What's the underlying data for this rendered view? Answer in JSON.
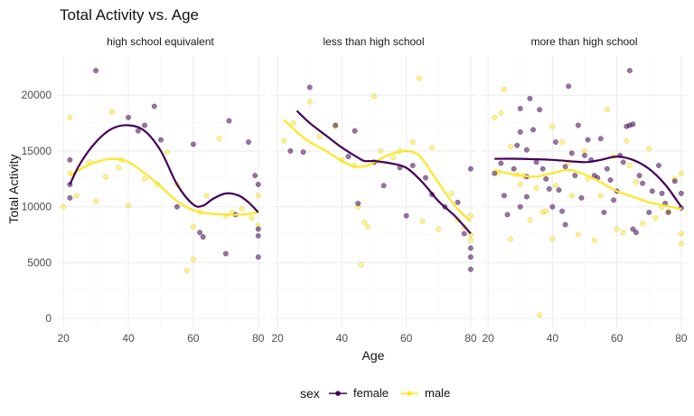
{
  "chart_data": {
    "type": "scatter",
    "title": "Total Activity vs. Age",
    "xlabel": "Age",
    "ylabel": "Total Activity",
    "xlim": [
      18,
      82
    ],
    "ylim": [
      -800,
      23500
    ],
    "x_ticks": [
      20,
      40,
      60,
      80
    ],
    "y_ticks": [
      0,
      5000,
      10000,
      15000,
      20000
    ],
    "y_tick_labels": [
      "0",
      "5000",
      "10000",
      "15000",
      "20000"
    ],
    "grid": true,
    "legend": {
      "title": "sex",
      "position": "bottom"
    },
    "colors": {
      "female": "#440154",
      "male": "#fde725"
    },
    "panels": [
      {
        "label": "high school equivalent",
        "points": {
          "female": [
            [
              22,
              12000
            ],
            [
              22,
              14200
            ],
            [
              22,
              10800
            ],
            [
              30,
              22200
            ],
            [
              40,
              18000
            ],
            [
              43,
              16800
            ],
            [
              45,
              17300
            ],
            [
              48,
              19000
            ],
            [
              50,
              16000
            ],
            [
              55,
              10000
            ],
            [
              60,
              15600
            ],
            [
              62,
              7700
            ],
            [
              63,
              7300
            ],
            [
              70,
              5800
            ],
            [
              71,
              17700
            ],
            [
              77,
              15800
            ],
            [
              80,
              12000
            ],
            [
              80,
              8000
            ],
            [
              80,
              7400
            ],
            [
              80,
              5500
            ],
            [
              79,
              12800
            ],
            [
              73,
              9300
            ]
          ],
          "male": [
            [
              20,
              10000
            ],
            [
              22,
              18000
            ],
            [
              22,
              13000
            ],
            [
              24,
              11000
            ],
            [
              28,
              14000
            ],
            [
              30,
              10500
            ],
            [
              33,
              12700
            ],
            [
              35,
              18500
            ],
            [
              37,
              13500
            ],
            [
              38,
              14200
            ],
            [
              40,
              10100
            ],
            [
              45,
              12500
            ],
            [
              49,
              12000
            ],
            [
              52,
              14900
            ],
            [
              55,
              12000
            ],
            [
              58,
              4300
            ],
            [
              60,
              5300
            ],
            [
              60,
              8200
            ],
            [
              62,
              9500
            ],
            [
              64,
              11000
            ],
            [
              68,
              16100
            ],
            [
              70,
              9200
            ],
            [
              72,
              9500
            ],
            [
              75,
              9800
            ],
            [
              78,
              9000
            ],
            [
              80,
              8300
            ],
            [
              80,
              11000
            ]
          ]
        },
        "smooth": {
          "female": [
            [
              22,
              12000
            ],
            [
              25,
              13800
            ],
            [
              30,
              15800
            ],
            [
              35,
              17000
            ],
            [
              40,
              17300
            ],
            [
              45,
              16800
            ],
            [
              50,
              15000
            ],
            [
              55,
              12000
            ],
            [
              60,
              10200
            ],
            [
              63,
              10100
            ],
            [
              66,
              10700
            ],
            [
              70,
              11200
            ],
            [
              74,
              11000
            ],
            [
              77,
              10400
            ],
            [
              80,
              9500
            ]
          ],
          "male": [
            [
              22,
              12800
            ],
            [
              26,
              13500
            ],
            [
              30,
              14000
            ],
            [
              35,
              14300
            ],
            [
              40,
              14000
            ],
            [
              45,
              13000
            ],
            [
              50,
              11800
            ],
            [
              55,
              10500
            ],
            [
              60,
              9700
            ],
            [
              65,
              9400
            ],
            [
              70,
              9300
            ],
            [
              75,
              9300
            ],
            [
              80,
              9500
            ]
          ]
        }
      },
      {
        "label": "less than high school",
        "points": {
          "female": [
            [
              24,
              15000
            ],
            [
              28,
              14900
            ],
            [
              30,
              20700
            ],
            [
              38,
              17300
            ],
            [
              42,
              14500
            ],
            [
              44,
              16800
            ],
            [
              45,
              10300
            ],
            [
              50,
              14000
            ],
            [
              53,
              11900
            ],
            [
              58,
              13500
            ],
            [
              60,
              9200
            ],
            [
              62,
              13700
            ],
            [
              66,
              12600
            ],
            [
              68,
              11100
            ],
            [
              72,
              10000
            ],
            [
              76,
              10400
            ],
            [
              78,
              7600
            ],
            [
              80,
              6300
            ],
            [
              80,
              5500
            ],
            [
              80,
              4400
            ],
            [
              80,
              13400
            ]
          ],
          "male": [
            [
              22,
              15900
            ],
            [
              25,
              17500
            ],
            [
              30,
              19400
            ],
            [
              33,
              16300
            ],
            [
              38,
              17200
            ],
            [
              40,
              14200
            ],
            [
              44,
              13700
            ],
            [
              45,
              10000
            ],
            [
              46,
              4800
            ],
            [
              47,
              8600
            ],
            [
              48,
              8200
            ],
            [
              50,
              19900
            ],
            [
              52,
              15000
            ],
            [
              56,
              14400
            ],
            [
              58,
              15000
            ],
            [
              62,
              15800
            ],
            [
              64,
              21500
            ],
            [
              65,
              8700
            ],
            [
              68,
              15300
            ],
            [
              70,
              8000
            ],
            [
              74,
              11200
            ],
            [
              76,
              8800
            ],
            [
              78,
              8200
            ],
            [
              80,
              9200
            ],
            [
              80,
              7500
            ],
            [
              80,
              7000
            ]
          ]
        },
        "smooth": {
          "female": [
            [
              26,
              18600
            ],
            [
              30,
              17500
            ],
            [
              35,
              16400
            ],
            [
              40,
              15300
            ],
            [
              45,
              14400
            ],
            [
              47,
              14100
            ],
            [
              50,
              14100
            ],
            [
              55,
              13900
            ],
            [
              60,
              13500
            ],
            [
              65,
              12200
            ],
            [
              70,
              10500
            ],
            [
              75,
              9200
            ],
            [
              80,
              7600
            ]
          ],
          "male": [
            [
              22,
              17800
            ],
            [
              26,
              16700
            ],
            [
              30,
              15800
            ],
            [
              35,
              15000
            ],
            [
              40,
              14100
            ],
            [
              44,
              13600
            ],
            [
              48,
              13700
            ],
            [
              52,
              14300
            ],
            [
              56,
              14800
            ],
            [
              60,
              15000
            ],
            [
              64,
              14600
            ],
            [
              68,
              13000
            ],
            [
              72,
              11300
            ],
            [
              76,
              9800
            ],
            [
              80,
              8700
            ]
          ]
        }
      },
      {
        "label": "more than high school",
        "points": {
          "female": [
            [
              22,
              13000
            ],
            [
              24,
              13900
            ],
            [
              25,
              11000
            ],
            [
              26,
              9300
            ],
            [
              28,
              13400
            ],
            [
              29,
              15500
            ],
            [
              30,
              18800
            ],
            [
              30,
              16700
            ],
            [
              30,
              10000
            ],
            [
              32,
              12700
            ],
            [
              32,
              10900
            ],
            [
              32,
              15100
            ],
            [
              33,
              19700
            ],
            [
              34,
              16900
            ],
            [
              35,
              14000
            ],
            [
              36,
              18700
            ],
            [
              37,
              13400
            ],
            [
              38,
              12500
            ],
            [
              39,
              11600
            ],
            [
              40,
              10000
            ],
            [
              41,
              15800
            ],
            [
              42,
              11500
            ],
            [
              43,
              9600
            ],
            [
              44,
              13600
            ],
            [
              44,
              8400
            ],
            [
              45,
              20800
            ],
            [
              46,
              14800
            ],
            [
              47,
              12800
            ],
            [
              48,
              17300
            ],
            [
              49,
              10800
            ],
            [
              50,
              14600
            ],
            [
              51,
              16000
            ],
            [
              52,
              14200
            ],
            [
              53,
              12800
            ],
            [
              54,
              12600
            ],
            [
              55,
              16100
            ],
            [
              56,
              9500
            ],
            [
              57,
              13400
            ],
            [
              58,
              12400
            ],
            [
              59,
              10600
            ],
            [
              60,
              11400
            ],
            [
              61,
              14600
            ],
            [
              62,
              14000
            ],
            [
              63,
              17200
            ],
            [
              64,
              22200
            ],
            [
              64,
              17300
            ],
            [
              65,
              8000
            ],
            [
              65,
              17400
            ],
            [
              66,
              7700
            ],
            [
              67,
              12800
            ],
            [
              68,
              12100
            ],
            [
              70,
              9500
            ],
            [
              71,
              11400
            ],
            [
              73,
              13700
            ],
            [
              74,
              11200
            ],
            [
              75,
              10300
            ],
            [
              76,
              9500
            ],
            [
              78,
              12300
            ],
            [
              80,
              11200
            ],
            [
              80,
              9900
            ]
          ],
          "male": [
            [
              22,
              18000
            ],
            [
              23,
              13000
            ],
            [
              24,
              18400
            ],
            [
              25,
              20500
            ],
            [
              27,
              15400
            ],
            [
              27,
              7100
            ],
            [
              29,
              12900
            ],
            [
              30,
              12000
            ],
            [
              31,
              12800
            ],
            [
              33,
              8800
            ],
            [
              35,
              11700
            ],
            [
              36,
              300
            ],
            [
              37,
              9500
            ],
            [
              38,
              9600
            ],
            [
              40,
              17200
            ],
            [
              40,
              7100
            ],
            [
              41,
              11900
            ],
            [
              43,
              15800
            ],
            [
              45,
              14000
            ],
            [
              46,
              11000
            ],
            [
              48,
              7500
            ],
            [
              50,
              15000
            ],
            [
              51,
              12500
            ],
            [
              53,
              7000
            ],
            [
              55,
              11000
            ],
            [
              57,
              18700
            ],
            [
              59,
              14500
            ],
            [
              60,
              8000
            ],
            [
              62,
              7700
            ],
            [
              63,
              15900
            ],
            [
              64,
              13700
            ],
            [
              66,
              12200
            ],
            [
              68,
              8500
            ],
            [
              70,
              15200
            ],
            [
              72,
              9000
            ],
            [
              74,
              10000
            ],
            [
              76,
              9600
            ],
            [
              78,
              12500
            ],
            [
              80,
              13000
            ],
            [
              80,
              7600
            ],
            [
              80,
              6700
            ]
          ]
        },
        "smooth": {
          "female": [
            [
              22,
              14300
            ],
            [
              30,
              14300
            ],
            [
              40,
              14200
            ],
            [
              50,
              14000
            ],
            [
              55,
              14200
            ],
            [
              60,
              14500
            ],
            [
              65,
              14200
            ],
            [
              70,
              13400
            ],
            [
              75,
              12000
            ],
            [
              80,
              10000
            ]
          ],
          "male": [
            [
              22,
              13300
            ],
            [
              26,
              13000
            ],
            [
              30,
              12800
            ],
            [
              35,
              12700
            ],
            [
              40,
              13000
            ],
            [
              45,
              13300
            ],
            [
              50,
              12900
            ],
            [
              55,
              12200
            ],
            [
              60,
              11400
            ],
            [
              65,
              10900
            ],
            [
              70,
              10400
            ],
            [
              75,
              10100
            ],
            [
              80,
              9800
            ]
          ]
        }
      }
    ]
  }
}
